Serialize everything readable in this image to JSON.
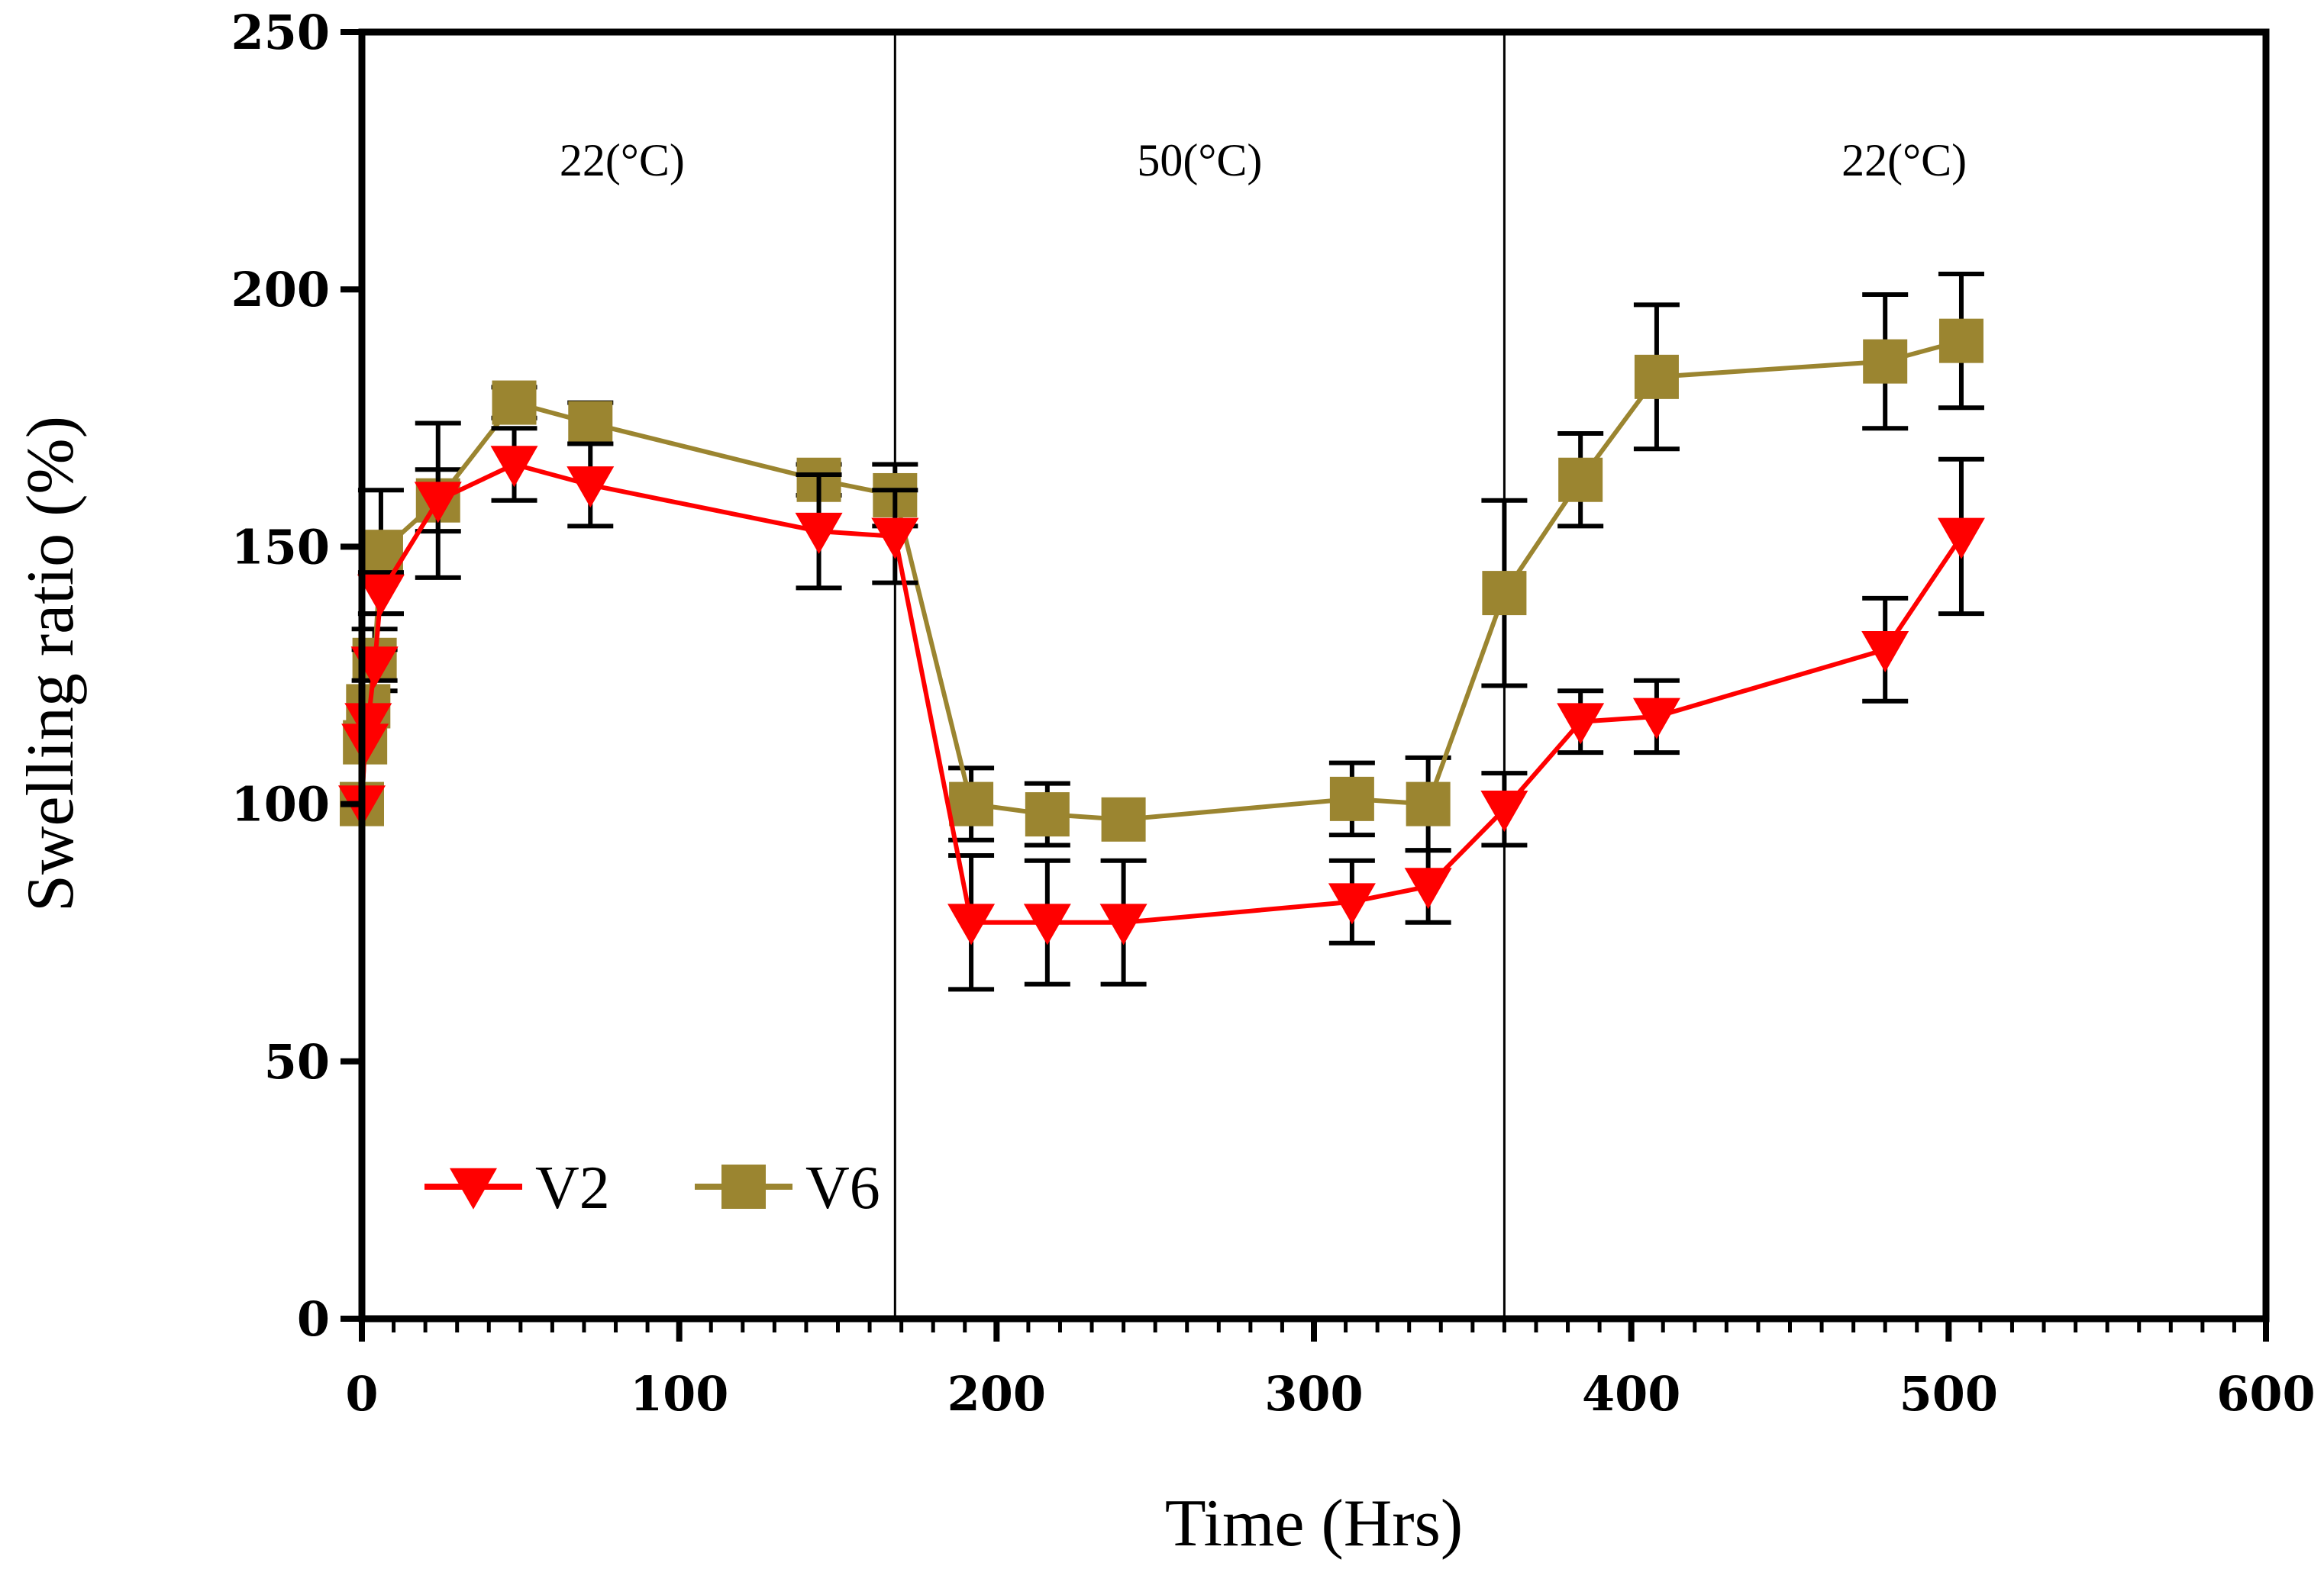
{
  "chart_data": {
    "type": "line",
    "title": "",
    "xlabel": "Time (Hrs)",
    "ylabel": "Swelling ratio (%)",
    "xlim": [
      0,
      600
    ],
    "ylim": [
      0,
      250
    ],
    "xticks": [
      0,
      100,
      200,
      300,
      400,
      500,
      600
    ],
    "yticks": [
      0,
      50,
      100,
      150,
      200,
      250
    ],
    "grid": false,
    "legend_position": "bottom-left",
    "vertical_lines": [
      168,
      360
    ],
    "regions": [
      {
        "label": "22(°C)",
        "x": 82
      },
      {
        "label": "50(°C)",
        "x": 264
      },
      {
        "label": "22(°C)",
        "x": 486
      }
    ],
    "series": [
      {
        "name": "V2",
        "marker": "triangle-down",
        "color": "#ff0000",
        "x": [
          0,
          1,
          2,
          4,
          6,
          24,
          48,
          72,
          144,
          168,
          192,
          216,
          240,
          312,
          336,
          360,
          384,
          408,
          480,
          504
        ],
        "values": [
          100,
          112,
          116,
          127,
          141,
          159,
          166,
          162,
          153,
          152,
          77,
          77,
          77,
          81,
          84,
          99,
          116,
          117,
          130,
          152
        ],
        "error": [
          0,
          0,
          0,
          3,
          4,
          15,
          7,
          8,
          11,
          9,
          13,
          12,
          12,
          8,
          7,
          7,
          6,
          7,
          10,
          15
        ]
      },
      {
        "name": "V6",
        "marker": "square",
        "color": "#9b8530",
        "x": [
          0,
          1,
          2,
          4,
          6,
          24,
          48,
          72,
          144,
          168,
          192,
          216,
          240,
          312,
          336,
          360,
          384,
          408,
          480,
          504
        ],
        "values": [
          100,
          112,
          119,
          128,
          149,
          159,
          178,
          174,
          163,
          160,
          100,
          98,
          97,
          101,
          100,
          141,
          163,
          183,
          186,
          190
        ],
        "error": [
          0,
          0,
          0,
          6,
          12,
          6,
          3,
          4,
          3,
          6,
          7,
          6,
          0,
          7,
          9,
          18,
          9,
          14,
          13,
          13
        ]
      }
    ]
  }
}
